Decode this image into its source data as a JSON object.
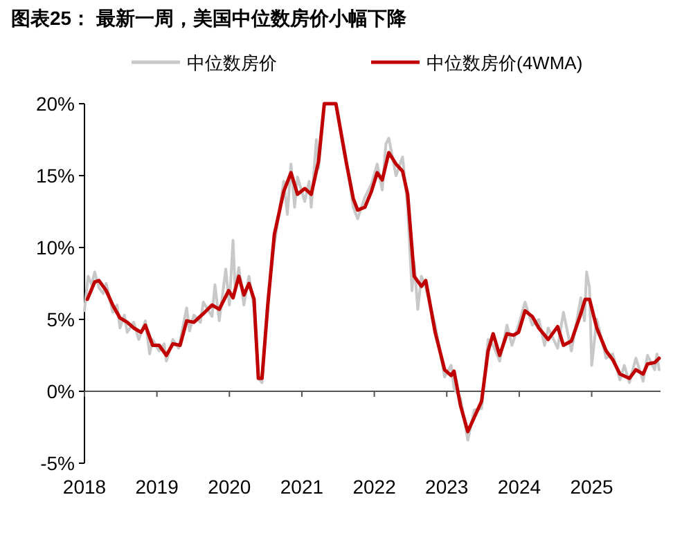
{
  "chart_data": {
    "type": "line",
    "title": "图表25：  最新一周，美国中位数房价小幅下降",
    "legend": "top",
    "xlim": [
      2018,
      2025.95
    ],
    "xticks": [
      2018,
      2019,
      2020,
      2021,
      2022,
      2023,
      2024,
      2025
    ],
    "ylim": [
      -5,
      20
    ],
    "yticks": [
      {
        "value": -5,
        "label": "-5%"
      },
      {
        "value": 0,
        "label": "0%"
      },
      {
        "value": 5,
        "label": "5%"
      },
      {
        "value": 10,
        "label": "10%"
      },
      {
        "value": 15,
        "label": "15%"
      },
      {
        "value": 20,
        "label": "20%"
      }
    ],
    "series": [
      {
        "name": "中位数房价",
        "color": "#c8c8c8",
        "x": [
          2018.0,
          2018.05,
          2018.1,
          2018.14,
          2018.2,
          2018.26,
          2018.3,
          2018.39,
          2018.45,
          2018.49,
          2018.55,
          2018.59,
          2018.68,
          2018.75,
          2018.84,
          2018.9,
          2018.94,
          2019.03,
          2019.1,
          2019.13,
          2019.22,
          2019.3,
          2019.41,
          2019.45,
          2019.51,
          2019.6,
          2019.64,
          2019.76,
          2019.8,
          2019.86,
          2019.95,
          2020.0,
          2020.05,
          2020.08,
          2020.13,
          2020.2,
          2020.27,
          2020.34,
          2020.4,
          2020.45,
          2020.53,
          2020.62,
          2020.75,
          2020.8,
          2020.85,
          2020.9,
          2020.94,
          2021.04,
          2021.1,
          2021.13,
          2021.2,
          2021.23,
          2021.31,
          2021.47,
          2021.6,
          2021.71,
          2021.77,
          2021.87,
          2021.96,
          2022.04,
          2022.11,
          2022.16,
          2022.2,
          2022.3,
          2022.39,
          2022.46,
          2022.52,
          2022.55,
          2022.6,
          2022.65,
          2022.71,
          2022.84,
          2022.97,
          2023.06,
          2023.1,
          2023.19,
          2023.29,
          2023.38,
          2023.48,
          2023.57,
          2023.64,
          2023.73,
          2023.83,
          2023.9,
          2023.99,
          2024.08,
          2024.18,
          2024.27,
          2024.35,
          2024.4,
          2024.53,
          2024.61,
          2024.72,
          2024.85,
          2024.9,
          2024.93,
          2024.97,
          2025.0,
          2025.07,
          2025.2,
          2025.29,
          2025.39,
          2025.45,
          2025.52,
          2025.61,
          2025.71,
          2025.77,
          2025.87,
          2025.9,
          2025.93
        ],
        "values": [
          5.6,
          8.0,
          7.4,
          8.3,
          7.2,
          6.8,
          7.5,
          5.5,
          6.0,
          4.4,
          5.3,
          4.1,
          4.8,
          3.6,
          4.9,
          2.6,
          3.6,
          2.8,
          3.3,
          2.1,
          3.6,
          3.0,
          5.8,
          4.2,
          5.3,
          4.8,
          6.2,
          5.2,
          7.4,
          4.9,
          8.5,
          6.0,
          10.5,
          7.0,
          8.6,
          6.0,
          8.0,
          5.8,
          0.9,
          0.6,
          6.5,
          10.2,
          14.6,
          12.3,
          15.8,
          12.8,
          14.9,
          13.2,
          14.6,
          12.8,
          17.5,
          15.5,
          20,
          20,
          16.5,
          12.8,
          12.0,
          13.5,
          14.4,
          15.8,
          14.0,
          17.2,
          17.6,
          15.0,
          16.3,
          12.8,
          7.0,
          9.0,
          5.7,
          8.0,
          7.2,
          4.6,
          1.0,
          1.8,
          0.2,
          -0.5,
          -3.4,
          -1.3,
          -1.2,
          3.6,
          3.2,
          2.1,
          4.6,
          3.2,
          4.6,
          6.2,
          4.6,
          5.0,
          3.2,
          4.4,
          3.0,
          5.5,
          2.8,
          6.5,
          4.9,
          8.3,
          7.2,
          1.8,
          5.0,
          2.3,
          2.6,
          0.8,
          1.8,
          0.6,
          2.3,
          0.7,
          2.5,
          1.5,
          2.6,
          1.5
        ]
      },
      {
        "name": "中位数房价(4WMA)",
        "color": "#c00000",
        "x": [
          2018.04,
          2018.14,
          2018.2,
          2018.3,
          2018.39,
          2018.49,
          2018.59,
          2018.68,
          2018.78,
          2018.84,
          2018.94,
          2019.03,
          2019.13,
          2019.22,
          2019.32,
          2019.41,
          2019.51,
          2019.64,
          2019.76,
          2019.86,
          2019.99,
          2020.05,
          2020.13,
          2020.2,
          2020.27,
          2020.34,
          2020.4,
          2020.45,
          2020.53,
          2020.62,
          2020.75,
          2020.85,
          2020.94,
          2021.04,
          2021.13,
          2021.23,
          2021.31,
          2021.47,
          2021.61,
          2021.71,
          2021.77,
          2021.87,
          2021.96,
          2022.04,
          2022.11,
          2022.2,
          2022.3,
          2022.39,
          2022.46,
          2022.55,
          2022.65,
          2022.71,
          2022.84,
          2022.97,
          2023.06,
          2023.1,
          2023.19,
          2023.29,
          2023.38,
          2023.48,
          2023.57,
          2023.64,
          2023.73,
          2023.83,
          2023.92,
          2023.99,
          2024.08,
          2024.18,
          2024.27,
          2024.4,
          2024.53,
          2024.61,
          2024.72,
          2024.85,
          2024.91,
          2024.97,
          2025.07,
          2025.2,
          2025.29,
          2025.39,
          2025.52,
          2025.61,
          2025.71,
          2025.77,
          2025.87,
          2025.93
        ],
        "values": [
          6.4,
          7.6,
          7.7,
          7.0,
          6.0,
          5.1,
          4.8,
          4.4,
          4.1,
          4.6,
          3.2,
          3.2,
          2.5,
          3.3,
          3.2,
          4.9,
          4.8,
          5.4,
          6.0,
          5.7,
          7.0,
          6.5,
          8.0,
          6.7,
          7.5,
          6.4,
          0.9,
          0.9,
          6.0,
          10.9,
          13.9,
          15.2,
          13.7,
          14.1,
          13.7,
          16.0,
          20,
          20,
          16.0,
          13.4,
          12.6,
          12.8,
          13.9,
          15.2,
          14.7,
          16.6,
          15.8,
          15.3,
          13.7,
          8.0,
          7.3,
          7.7,
          4.1,
          1.5,
          1.1,
          1.4,
          -1.0,
          -2.8,
          -1.8,
          -0.7,
          2.8,
          4.0,
          2.5,
          4.0,
          3.9,
          4.1,
          5.6,
          5.2,
          4.4,
          3.6,
          4.5,
          3.2,
          3.5,
          5.4,
          6.4,
          6.4,
          4.4,
          2.8,
          2.2,
          1.2,
          0.9,
          1.5,
          1.2,
          1.9,
          2.0,
          2.3
        ]
      }
    ]
  }
}
